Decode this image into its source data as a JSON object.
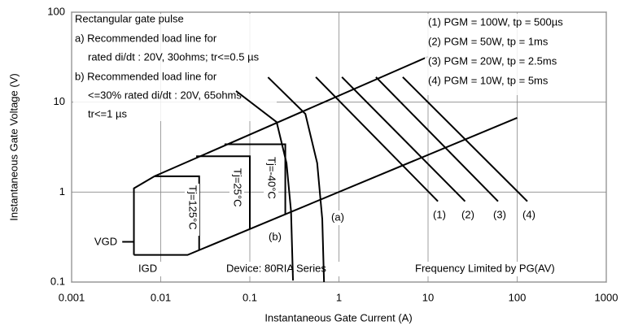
{
  "chart_data": {
    "type": "line",
    "xlabel": "Instantaneous Gate Current (A)",
    "ylabel": "Instantaneous Gate Voltage (V)",
    "log_x": true,
    "log_y": true,
    "grid": true,
    "legend": "upper right",
    "xlim": [
      0.001,
      1000
    ],
    "ylim": [
      0.1,
      100
    ],
    "xticks": [
      0.001,
      0.01,
      0.1,
      1,
      10,
      100,
      1000
    ],
    "yticks": [
      0.1,
      1,
      10,
      100
    ],
    "annotations": [
      "Rectangular gate pulse",
      "a) Recommended load line for",
      "rated di/dt : 20V, 30ohms; tr<=0.5 µs",
      "b) Recommended load line for",
      "<=30% rated di/dt : 20V, 65ohms",
      "tr<=1 µs",
      "IGD",
      "Device: 80RIA Series",
      "Frequency Limited by PG(AV)"
    ],
    "series": [
      {
        "color": "#000000",
        "x": [
          0.005,
          0.005,
          0.0085,
          10
        ],
        "values": [
          0.2,
          1.1,
          1.5,
          32
        ]
      },
      {
        "color": "#000000",
        "x": [
          0.005,
          0.02,
          100
        ],
        "values": [
          0.2,
          0.2,
          6.7
        ]
      },
      {
        "label": "(a)",
        "color": "#000000",
        "x": [
          0.16,
          0.42,
          0.57,
          0.65,
          0.68
        ],
        "values": [
          18.9,
          7.4,
          2.1,
          0.5,
          0.1
        ]
      },
      {
        "label": "(b)",
        "color": "#000000",
        "x": [
          0.07,
          0.2,
          0.258,
          0.29,
          0.305
        ],
        "values": [
          13.3,
          6,
          2.1,
          0.61,
          0.104
        ]
      },
      {
        "label": "Tj=125°C",
        "color": "#000000",
        "x": [
          0.0085,
          0.027,
          0.027
        ],
        "values": [
          1.5,
          1.5,
          0.23
        ]
      },
      {
        "label": "Tj=25°C",
        "color": "#000000",
        "x": [
          0.025,
          0.1,
          0.1
        ],
        "values": [
          2.5,
          2.5,
          0.39
        ]
      },
      {
        "label": "Tj=-40°C",
        "color": "#000000",
        "x": [
          0.052,
          0.25,
          0.25
        ],
        "values": [
          3.4,
          3.4,
          0.56
        ]
      },
      {
        "label": "VGD",
        "color": "#000000",
        "x": [
          0.0037,
          0.005
        ],
        "values": [
          0.28,
          0.28
        ]
      },
      {
        "name": "(1) PGM = 100W,  tp = 500µs",
        "label": "(1)",
        "color": "#000000",
        "x": [
          0.55,
          12.9
        ],
        "values": [
          19,
          0.79
        ]
      },
      {
        "name": "(2) PGM = 50W,  tp = 1ms",
        "label": "(2)",
        "color": "#000000",
        "x": [
          1.08,
          26
        ],
        "values": [
          19,
          0.79
        ]
      },
      {
        "name": "(3) PGM = 20W,  tp = 2.5ms",
        "label": "(3)",
        "color": "#000000",
        "x": [
          2.6,
          61
        ],
        "values": [
          19,
          0.79
        ]
      },
      {
        "name": "(4) PGM = 10W,  tp = 5ms",
        "label": "(4)",
        "color": "#000000",
        "x": [
          5.2,
          130
        ],
        "values": [
          19,
          0.79
        ]
      }
    ]
  }
}
